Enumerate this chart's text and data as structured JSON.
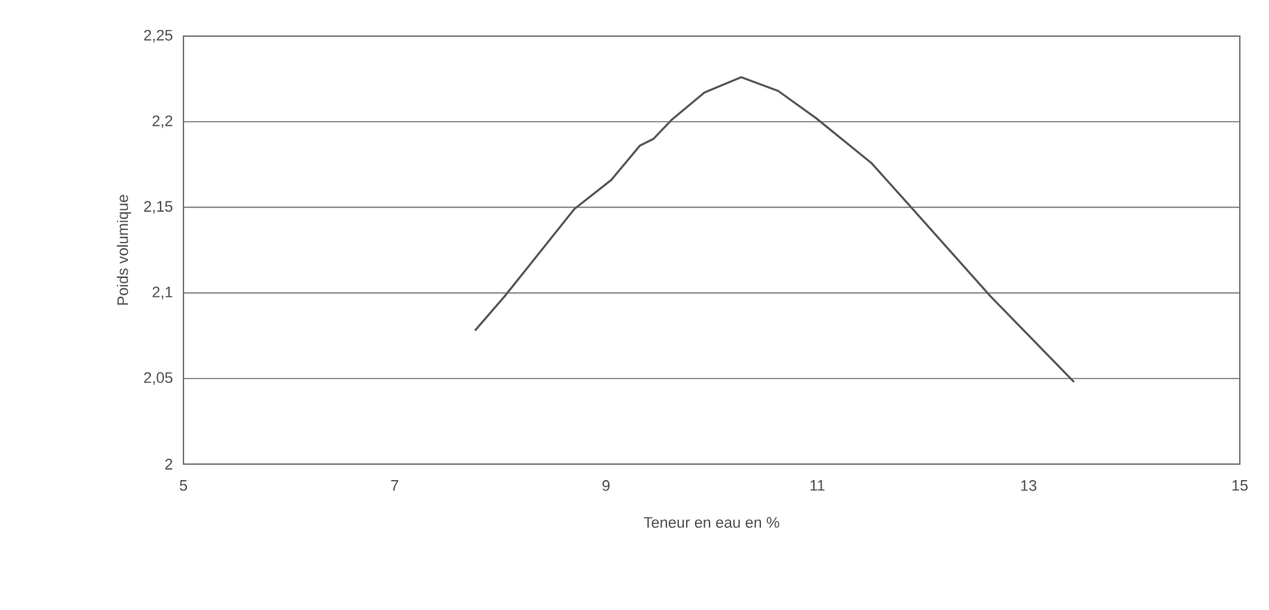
{
  "chart_data": {
    "type": "line",
    "xlabel": "Teneur en eau en %",
    "ylabel": "Poids volumique",
    "x": [
      7.76,
      8.04,
      8.7,
      9.05,
      9.32,
      9.45,
      9.62,
      9.93,
      10.28,
      10.63,
      10.99,
      11.51,
      11.86,
      12.64,
      13.43
    ],
    "series": [
      {
        "color": "#555555",
        "values": [
          2.078,
          2.098,
          2.149,
          2.166,
          2.186,
          2.19,
          2.201,
          2.217,
          2.226,
          2.218,
          2.202,
          2.176,
          2.152,
          2.098,
          2.048
        ]
      }
    ],
    "xlim": [
      5,
      15
    ],
    "ylim": [
      2,
      2.25
    ],
    "xticks": [
      5,
      7,
      9,
      11,
      13,
      15
    ],
    "yticks": [
      2,
      {
        "value": 2.05,
        "label": "2,05"
      },
      {
        "value": 2.1,
        "label": "2,1"
      },
      {
        "value": 2.15,
        "label": "2,15"
      },
      {
        "value": 2.2,
        "label": "2,2"
      },
      {
        "value": 2.25,
        "label": "2,25"
      }
    ],
    "grid": "y",
    "marker": "none",
    "line_style": "solid"
  }
}
